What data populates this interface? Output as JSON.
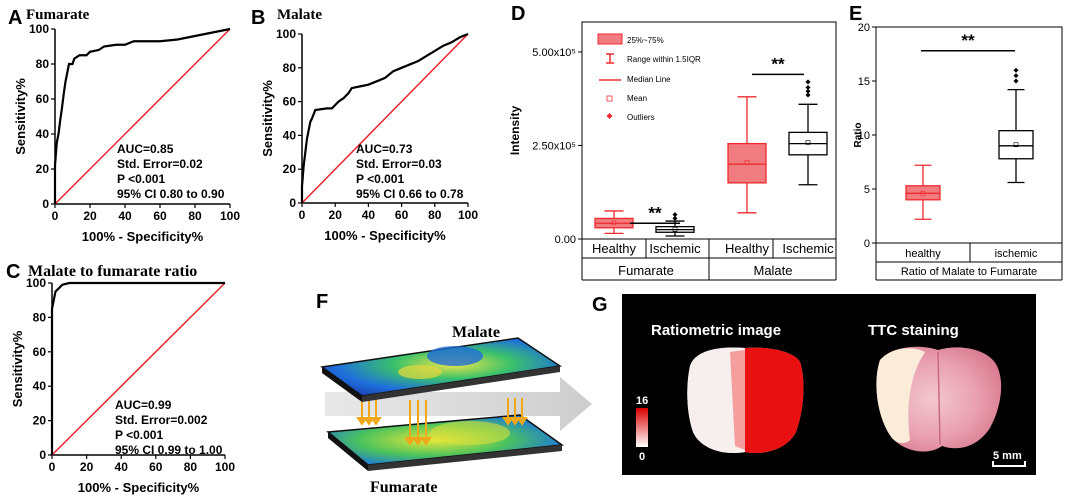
{
  "chart_data": [
    {
      "panel": "A",
      "type": "line",
      "title": "Fumarate",
      "xlabel": "100% - Specificity%",
      "ylabel": "Sensitivity%",
      "xlim": [
        0,
        100
      ],
      "ylim": [
        0,
        100
      ],
      "ticks": [
        "0",
        "20",
        "40",
        "60",
        "80",
        "100"
      ],
      "annotation": [
        "AUC=0.85",
        "Std. Error=0.02",
        "P <0.001",
        "95% CI 0.80 to 0.90"
      ],
      "roc": [
        [
          0,
          0
        ],
        [
          0,
          22
        ],
        [
          1,
          35
        ],
        [
          2,
          40
        ],
        [
          3,
          48
        ],
        [
          4,
          55
        ],
        [
          5,
          63
        ],
        [
          6,
          70
        ],
        [
          7,
          75
        ],
        [
          8,
          80
        ],
        [
          10,
          80
        ],
        [
          11,
          83
        ],
        [
          14,
          85
        ],
        [
          18,
          85
        ],
        [
          20,
          87
        ],
        [
          25,
          88
        ],
        [
          28,
          90
        ],
        [
          35,
          91
        ],
        [
          40,
          91
        ],
        [
          45,
          93
        ],
        [
          50,
          93
        ],
        [
          60,
          93
        ],
        [
          70,
          94
        ],
        [
          75,
          95
        ],
        [
          80,
          96
        ],
        [
          85,
          97
        ],
        [
          90,
          98
        ],
        [
          95,
          99
        ],
        [
          100,
          100
        ]
      ],
      "reference": [
        [
          0,
          0
        ],
        [
          100,
          100
        ]
      ]
    },
    {
      "panel": "B",
      "type": "line",
      "title": "Malate",
      "xlabel": "100% - Specificity%",
      "ylabel": "Sensitivity%",
      "xlim": [
        0,
        100
      ],
      "ylim": [
        0,
        100
      ],
      "ticks": [
        "0",
        "20",
        "40",
        "60",
        "80",
        "100"
      ],
      "annotation": [
        "AUC=0.73",
        "Std. Error=0.03",
        "P <0.001",
        "95% CI 0.66 to 0.78"
      ],
      "roc": [
        [
          0,
          0
        ],
        [
          0,
          10
        ],
        [
          1,
          22
        ],
        [
          2,
          30
        ],
        [
          3,
          38
        ],
        [
          5,
          48
        ],
        [
          6,
          50
        ],
        [
          8,
          55
        ],
        [
          15,
          56
        ],
        [
          18,
          56
        ],
        [
          20,
          58
        ],
        [
          22,
          60
        ],
        [
          25,
          62
        ],
        [
          28,
          65
        ],
        [
          30,
          68
        ],
        [
          35,
          69
        ],
        [
          40,
          70
        ],
        [
          45,
          72
        ],
        [
          50,
          74
        ],
        [
          55,
          78
        ],
        [
          60,
          80
        ],
        [
          65,
          82
        ],
        [
          70,
          84
        ],
        [
          75,
          87
        ],
        [
          80,
          90
        ],
        [
          85,
          93
        ],
        [
          90,
          95
        ],
        [
          95,
          98
        ],
        [
          100,
          100
        ]
      ],
      "reference": [
        [
          0,
          0
        ],
        [
          100,
          100
        ]
      ]
    },
    {
      "panel": "C",
      "type": "line",
      "title": "Malate to fumarate ratio",
      "xlabel": "100% - Specificity%",
      "ylabel": "Sensitivity%",
      "xlim": [
        0,
        100
      ],
      "ylim": [
        0,
        100
      ],
      "ticks": [
        "0",
        "20",
        "40",
        "60",
        "80",
        "100"
      ],
      "annotation": [
        "AUC=0.99",
        "Std. Error=0.002",
        "P <0.001",
        "95% CI 0.99 to 1.00"
      ],
      "roc": [
        [
          0,
          0
        ],
        [
          0,
          85
        ],
        [
          1,
          90
        ],
        [
          2,
          95
        ],
        [
          4,
          97
        ],
        [
          6,
          99
        ],
        [
          10,
          100
        ],
        [
          100,
          100
        ]
      ],
      "reference": [
        [
          0,
          0
        ],
        [
          100,
          100
        ]
      ]
    },
    {
      "panel": "D",
      "type": "box",
      "ylabel": "Intensity",
      "ylim": [
        0,
        580000
      ],
      "yticks": [
        {
          "v": 0,
          "t": "0.00"
        },
        {
          "v": 250000,
          "t": "2.50x10⁵"
        },
        {
          "v": 500000,
          "t": "5.00x10⁵"
        }
      ],
      "categories": [
        "Healthy",
        "Ischemic",
        "Healthy",
        "Ischemic"
      ],
      "groups": [
        "Fumarate",
        "Malate"
      ],
      "legend": [
        "25%~75%",
        "Range within 1.5IQR",
        "Median Line",
        "Mean",
        "Outliers"
      ],
      "sig": [
        "**",
        "**"
      ],
      "boxes": [
        {
          "color": "#ee2b2f",
          "min": 15000,
          "q1": 30000,
          "med": 42000,
          "q3": 55000,
          "max": 75000,
          "mean": 43000,
          "outliers": []
        },
        {
          "color": "#000000",
          "min": 8000,
          "q1": 18000,
          "med": 25000,
          "q3": 33000,
          "max": 48000,
          "mean": 26000,
          "outliers": [
            55000,
            65000
          ]
        },
        {
          "color": "#ee2b2f",
          "min": 70000,
          "q1": 150000,
          "med": 200000,
          "q3": 255000,
          "max": 380000,
          "mean": 205000,
          "outliers": []
        },
        {
          "color": "#000000",
          "min": 145000,
          "q1": 225000,
          "med": 255000,
          "q3": 285000,
          "max": 360000,
          "mean": 258000,
          "outliers": [
            385000,
            395000,
            405000,
            420000
          ]
        }
      ]
    },
    {
      "panel": "E",
      "type": "box",
      "ylabel": "Ratio",
      "ylim": [
        0,
        20
      ],
      "yticks": [
        {
          "v": 0,
          "t": "0"
        },
        {
          "v": 5,
          "t": "5"
        },
        {
          "v": 10,
          "t": "10"
        },
        {
          "v": 15,
          "t": "15"
        },
        {
          "v": 20,
          "t": "20"
        }
      ],
      "categories": [
        "healthy",
        "ischemic"
      ],
      "groups": [
        "Ratio of Malate to Fumarate"
      ],
      "sig": [
        "**"
      ],
      "boxes": [
        {
          "color": "#ee2b2f",
          "min": 2.2,
          "q1": 4.0,
          "med": 4.6,
          "q3": 5.3,
          "max": 7.2,
          "mean": 4.6,
          "outliers": []
        },
        {
          "color": "#000000",
          "min": 5.6,
          "q1": 7.8,
          "med": 9.0,
          "q3": 10.4,
          "max": 14.2,
          "mean": 9.1,
          "outliers": [
            15.0,
            15.5,
            16.0
          ]
        }
      ]
    }
  ],
  "panels": {
    "F": {
      "label": "F",
      "top_layer": "Malate",
      "bottom_layer": "Fumarate"
    },
    "G": {
      "label": "G",
      "left_title": "Ratiometric image",
      "right_title": "TTC staining",
      "scale_max": "16",
      "scale_min": "0",
      "scale_bar": "5 mm"
    }
  },
  "colors": {
    "red": "#ee2b2f",
    "box_fill": "#f07c7f",
    "black": "#000000"
  }
}
